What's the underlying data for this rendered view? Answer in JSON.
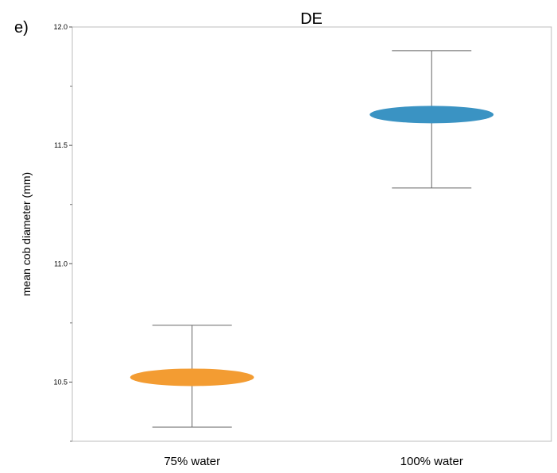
{
  "panel_label": "e)",
  "chart_data": {
    "type": "scatter",
    "title": "DE",
    "xlabel": "",
    "ylabel": "mean cob diameter (mm)",
    "ylim": [
      10.25,
      12.0
    ],
    "yticks": [
      "10.5",
      "11.0",
      "11.5",
      "12.0"
    ],
    "ytick_values": [
      10.5,
      11.0,
      11.5,
      12.0
    ],
    "yminor_ticks": [
      10.25,
      10.75,
      11.25,
      11.75
    ],
    "categories": [
      "75% water",
      "100% water"
    ],
    "values": [
      10.52,
      11.63
    ],
    "error_low": [
      10.31,
      11.32
    ],
    "error_high": [
      10.74,
      11.9
    ],
    "colors": [
      "#f39c32",
      "#3a93c3"
    ],
    "grid": false
  }
}
